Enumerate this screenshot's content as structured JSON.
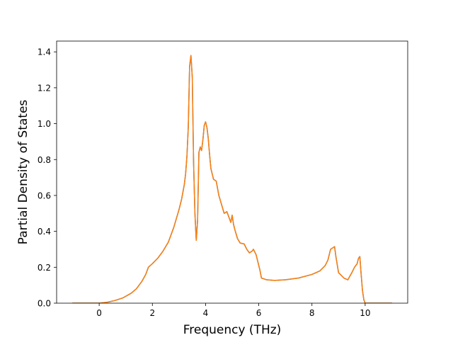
{
  "chart_data": {
    "type": "line",
    "title": "",
    "xlabel": "Frequency (THz)",
    "ylabel": "Partial Density of States",
    "xlim": [
      -1.6,
      11.6
    ],
    "ylim": [
      0.0,
      1.46
    ],
    "xticks": [
      {
        "value": 0,
        "label": "0"
      },
      {
        "value": 2,
        "label": "2"
      },
      {
        "value": 4,
        "label": "4"
      },
      {
        "value": 6,
        "label": "6"
      },
      {
        "value": 8,
        "label": "8"
      },
      {
        "value": 10,
        "label": "10"
      }
    ],
    "yticks": [
      {
        "value": 0.0,
        "label": "0.0"
      },
      {
        "value": 0.2,
        "label": "0.2"
      },
      {
        "value": 0.4,
        "label": "0.4"
      },
      {
        "value": 0.6,
        "label": "0.6"
      },
      {
        "value": 0.8,
        "label": "0.8"
      },
      {
        "value": 1.0,
        "label": "1.0"
      },
      {
        "value": 1.2,
        "label": "1.2"
      },
      {
        "value": 1.4,
        "label": "1.4"
      }
    ],
    "grid": false,
    "legend": "none",
    "series": [
      {
        "color": "#1f77b4",
        "x": [
          -1.0,
          0.0,
          0.3,
          0.6,
          0.9,
          1.2,
          1.4,
          1.6,
          1.75,
          1.85,
          2.0,
          2.2,
          2.4,
          2.6,
          2.8,
          3.0,
          3.1,
          3.2,
          3.25,
          3.3,
          3.35,
          3.4,
          3.45,
          3.5,
          3.55,
          3.6,
          3.65,
          3.7,
          3.75,
          3.8,
          3.85,
          3.9,
          3.95,
          4.0,
          4.05,
          4.1,
          4.15,
          4.2,
          4.3,
          4.4,
          4.5,
          4.6,
          4.7,
          4.8,
          4.9,
          4.95,
          5.0,
          5.05,
          5.1,
          5.2,
          5.3,
          5.45,
          5.55,
          5.65,
          5.75,
          5.8,
          5.9,
          6.0,
          6.05,
          6.1,
          6.3,
          6.6,
          7.0,
          7.5,
          8.0,
          8.3,
          8.5,
          8.6,
          8.65,
          8.7,
          8.8,
          8.85,
          8.9,
          9.0,
          9.2,
          9.35,
          9.5,
          9.6,
          9.7,
          9.75,
          9.8,
          9.85,
          9.9,
          9.95,
          10.0,
          10.1,
          11.0
        ],
        "y": [
          0.0,
          0.0,
          0.005,
          0.015,
          0.03,
          0.055,
          0.08,
          0.12,
          0.16,
          0.2,
          0.22,
          0.25,
          0.29,
          0.34,
          0.42,
          0.52,
          0.58,
          0.66,
          0.72,
          0.82,
          0.98,
          1.32,
          1.38,
          1.26,
          0.78,
          0.5,
          0.35,
          0.46,
          0.84,
          0.87,
          0.85,
          0.91,
          0.99,
          1.01,
          0.98,
          0.92,
          0.83,
          0.75,
          0.69,
          0.68,
          0.6,
          0.55,
          0.5,
          0.51,
          0.47,
          0.45,
          0.49,
          0.44,
          0.41,
          0.36,
          0.335,
          0.33,
          0.3,
          0.28,
          0.29,
          0.3,
          0.27,
          0.21,
          0.18,
          0.14,
          0.13,
          0.127,
          0.13,
          0.14,
          0.16,
          0.18,
          0.21,
          0.24,
          0.27,
          0.3,
          0.31,
          0.315,
          0.26,
          0.17,
          0.14,
          0.13,
          0.17,
          0.2,
          0.22,
          0.25,
          0.26,
          0.16,
          0.07,
          0.02,
          0.0,
          0.0,
          0.0
        ]
      },
      {
        "color": "#ff7f0e",
        "x": [
          -1.0,
          0.0,
          0.3,
          0.6,
          0.9,
          1.2,
          1.4,
          1.6,
          1.75,
          1.85,
          2.0,
          2.2,
          2.4,
          2.6,
          2.8,
          3.0,
          3.1,
          3.2,
          3.25,
          3.3,
          3.35,
          3.4,
          3.45,
          3.5,
          3.55,
          3.6,
          3.65,
          3.7,
          3.75,
          3.8,
          3.85,
          3.9,
          3.95,
          4.0,
          4.05,
          4.1,
          4.15,
          4.2,
          4.3,
          4.4,
          4.5,
          4.6,
          4.7,
          4.8,
          4.9,
          4.95,
          5.0,
          5.05,
          5.1,
          5.2,
          5.3,
          5.45,
          5.55,
          5.65,
          5.75,
          5.8,
          5.9,
          6.0,
          6.05,
          6.1,
          6.3,
          6.6,
          7.0,
          7.5,
          8.0,
          8.3,
          8.5,
          8.6,
          8.65,
          8.7,
          8.8,
          8.85,
          8.9,
          9.0,
          9.2,
          9.35,
          9.5,
          9.6,
          9.7,
          9.75,
          9.8,
          9.85,
          9.9,
          9.95,
          10.0,
          10.1,
          11.0
        ],
        "y": [
          0.0,
          0.0,
          0.005,
          0.015,
          0.03,
          0.055,
          0.08,
          0.12,
          0.16,
          0.2,
          0.22,
          0.25,
          0.29,
          0.34,
          0.42,
          0.52,
          0.58,
          0.66,
          0.72,
          0.82,
          0.98,
          1.32,
          1.38,
          1.26,
          0.78,
          0.5,
          0.35,
          0.46,
          0.84,
          0.87,
          0.85,
          0.91,
          0.99,
          1.01,
          0.98,
          0.92,
          0.83,
          0.75,
          0.69,
          0.68,
          0.6,
          0.55,
          0.5,
          0.51,
          0.47,
          0.45,
          0.49,
          0.44,
          0.41,
          0.36,
          0.335,
          0.33,
          0.3,
          0.28,
          0.29,
          0.3,
          0.27,
          0.21,
          0.18,
          0.14,
          0.13,
          0.127,
          0.13,
          0.14,
          0.16,
          0.18,
          0.21,
          0.24,
          0.27,
          0.3,
          0.31,
          0.315,
          0.26,
          0.17,
          0.14,
          0.13,
          0.17,
          0.2,
          0.22,
          0.25,
          0.26,
          0.16,
          0.07,
          0.02,
          0.0,
          0.0,
          0.0
        ]
      }
    ]
  }
}
